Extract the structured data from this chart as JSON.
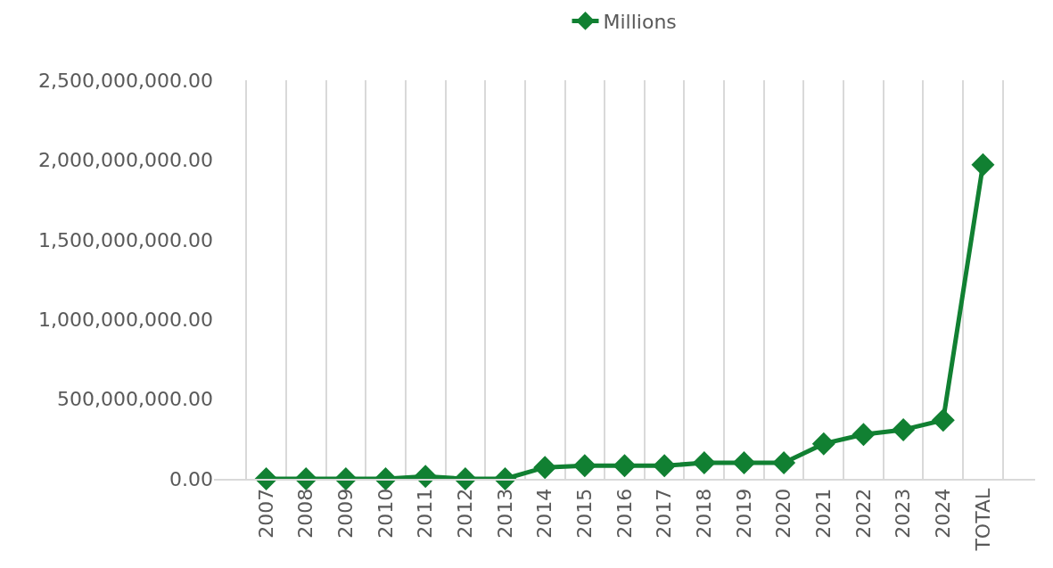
{
  "chart_data": {
    "type": "line",
    "categories": [
      "2007",
      "2008",
      "2009",
      "2010",
      "2011",
      "2012",
      "2013",
      "2014",
      "2015",
      "2016",
      "2017",
      "2018",
      "2019",
      "2020",
      "2021",
      "2022",
      "2023",
      "2024",
      "TOTAL"
    ],
    "series": [
      {
        "name": "Millions",
        "color": "#118032",
        "values": [
          0,
          0,
          0,
          0,
          15000000,
          0,
          0,
          72000000,
          82000000,
          82000000,
          82000000,
          100000000,
          100000000,
          100000000,
          220000000,
          278000000,
          308000000,
          368000000,
          1970000000
        ]
      }
    ],
    "ylim": [
      0,
      2500000000
    ],
    "yticks": [
      {
        "value": 0,
        "label": "0.00"
      },
      {
        "value": 500000000,
        "label": "500,000,000.00"
      },
      {
        "value": 1000000000,
        "label": "1,000,000,000.00"
      },
      {
        "value": 1500000000,
        "label": "1,500,000,000.00"
      },
      {
        "value": 2000000000,
        "label": "2,000,000,000.00"
      },
      {
        "value": 2500000000,
        "label": "2,500,000,000.00"
      }
    ],
    "grid": "x",
    "legend": "top",
    "marker": "diamond",
    "line_style": "solid"
  }
}
